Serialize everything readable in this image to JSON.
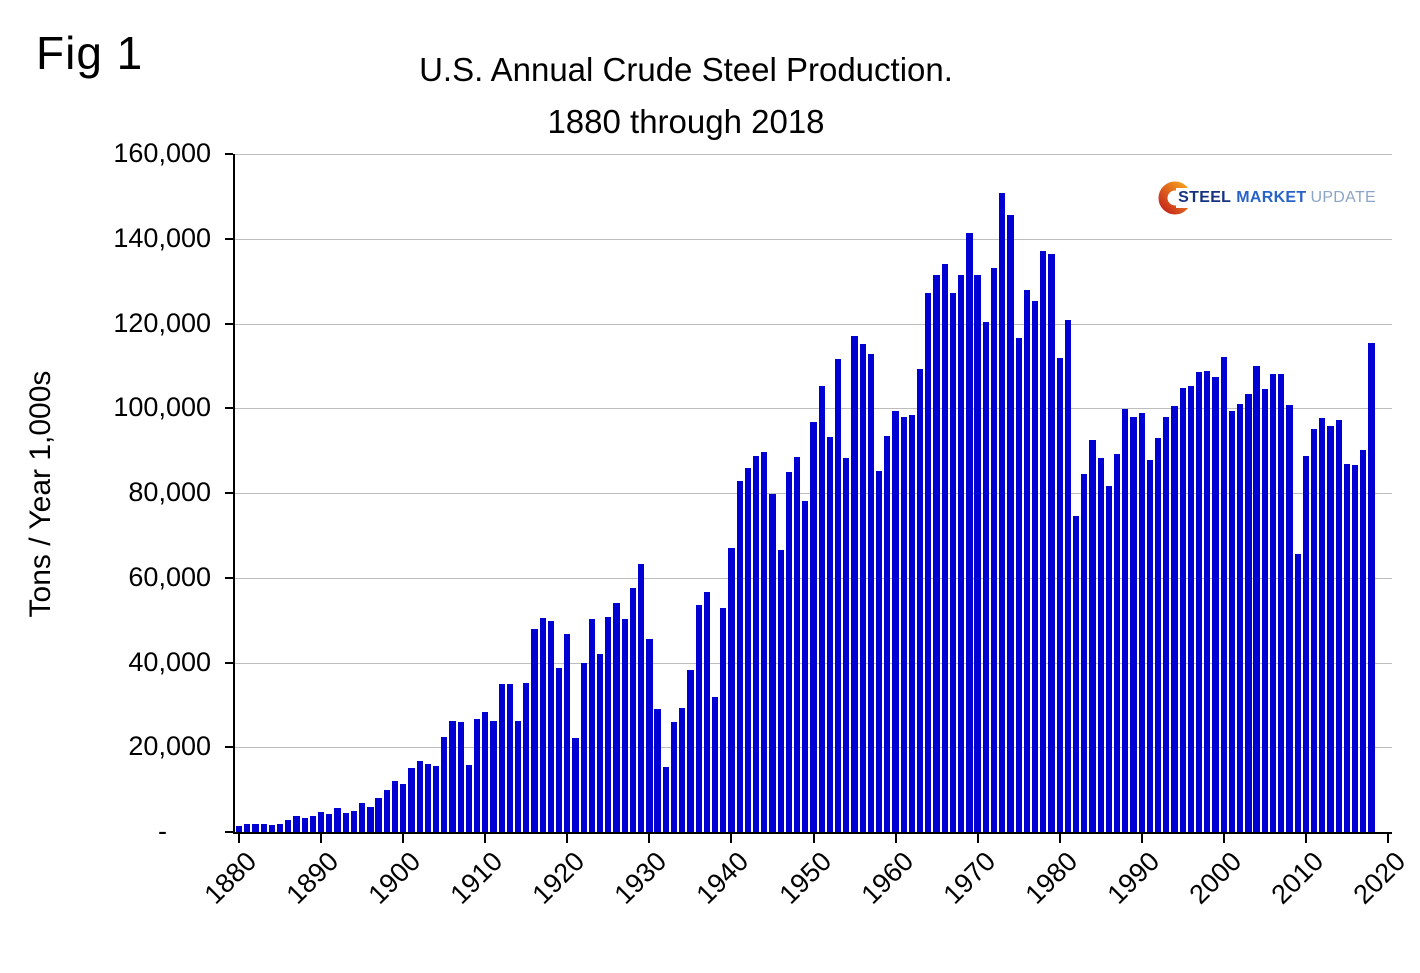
{
  "figure": {
    "fig_label": "Fig 1",
    "title_line1": "U.S. Annual Crude Steel Production.",
    "title_line2": "1880 through 2018",
    "y_axis_label": "Tons / Year 1,000s"
  },
  "logo": {
    "steel": "STEEL",
    "market": "MARKET",
    "update": "UPDATE"
  },
  "chart_data": {
    "type": "bar",
    "title": "U.S. Annual Crude Steel Production. 1880 through 2018",
    "xlabel": "",
    "ylabel": "Tons / Year 1,000s",
    "ylim": [
      0,
      160000
    ],
    "grid": "horizontal",
    "legend": "none",
    "bar_color": "#0000d2",
    "gridline_color": "#bdbdbd",
    "y_ticks": [
      0,
      20000,
      40000,
      60000,
      80000,
      100000,
      120000,
      140000,
      160000
    ],
    "y_tick_labels": [
      "-",
      "20,000",
      "40,000",
      "60,000",
      "80,000",
      "100,000",
      "120,000",
      "140,000",
      "160,000"
    ],
    "x_tick_labels": [
      "1880",
      "1890",
      "1900",
      "1910",
      "1920",
      "1930",
      "1940",
      "1950",
      "1960",
      "1970",
      "1980",
      "1990",
      "2000",
      "2010",
      "2020"
    ],
    "start_year": 1880,
    "end_year": 2018,
    "x_axis_end_year": 2020,
    "values": [
      1397,
      1778,
      1945,
      1874,
      1737,
      1917,
      2870,
      3741,
      3247,
      3792,
      4790,
      4356,
      5557,
      4486,
      4958,
      6834,
      5971,
      7933,
      9920,
      11963,
      11400,
      15100,
      16700,
      16100,
      15500,
      22400,
      26200,
      26000,
      15700,
      26700,
      28300,
      26300,
      35000,
      35000,
      26300,
      35200,
      47800,
      50500,
      49900,
      38800,
      46800,
      22200,
      39900,
      50300,
      42100,
      50800,
      54100,
      50300,
      57700,
      63200,
      45600,
      29000,
      15300,
      26000,
      29200,
      38200,
      53500,
      56600,
      31800,
      52800,
      67000,
      82800,
      86000,
      88800,
      89600,
      79700,
      66600,
      84900,
      88600,
      78000,
      96800,
      105200,
      93200,
      111600,
      88300,
      117000,
      115200,
      112700,
      85300,
      93400,
      99300,
      98000,
      98300,
      109300,
      127100,
      131500,
      134100,
      127200,
      131500,
      141300,
      131500,
      120400,
      133200,
      150800,
      145700,
      116600,
      128000,
      125300,
      137000,
      136300,
      111800,
      120800,
      74600,
      84600,
      92500,
      88300,
      81600,
      89200,
      99900,
      97900,
      98900,
      87900,
      92900,
      97900,
      100600,
      104900,
      105300,
      108500,
      108800,
      107400,
      112200,
      99300,
      100900,
      103300,
      109900,
      104600,
      108200,
      108100,
      100800,
      65500,
      88700,
      95200,
      97800,
      95800,
      97200,
      86900,
      86500,
      90200,
      115500
    ]
  }
}
